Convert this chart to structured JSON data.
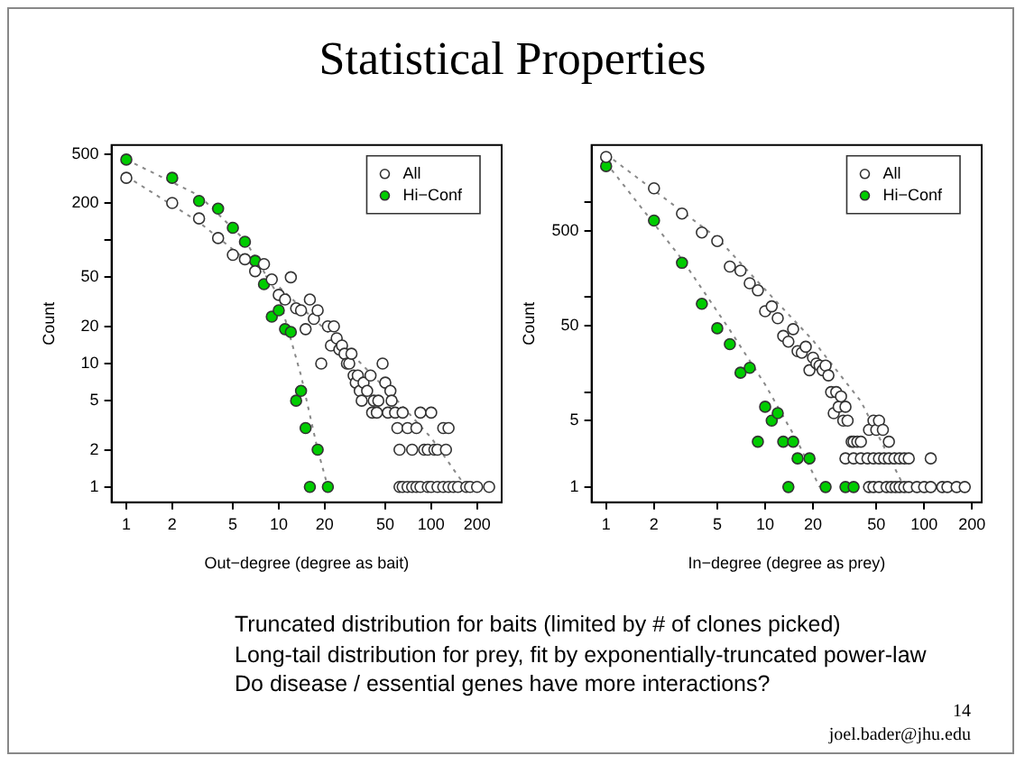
{
  "chart_data": [
    {
      "type": "scatter",
      "xlabel": "Out−degree (degree as bait)",
      "ylabel": "Count",
      "log": "xy",
      "grid": false,
      "legend": "top right",
      "marker": "circle",
      "xlim": [
        0.8,
        290
      ],
      "ylim": [
        0.75,
        590
      ],
      "xticks": [
        1,
        2,
        5,
        10,
        20,
        50,
        100,
        200
      ],
      "yticks": [
        1,
        2,
        5,
        10,
        20,
        50,
        {
          "value": 100,
          "label": null
        },
        200,
        500
      ],
      "series": [
        {
          "name": "All",
          "color": "#ffffff",
          "x": [
            1,
            2,
            3,
            4,
            5,
            6,
            7,
            8,
            9,
            10,
            11,
            12,
            13,
            14,
            15,
            16,
            17,
            18,
            19,
            21,
            22,
            23,
            24,
            25,
            26,
            27,
            28,
            29,
            30,
            31,
            32,
            33,
            34,
            35,
            36,
            38,
            40,
            41,
            42,
            44,
            45,
            48,
            50,
            52,
            54,
            55,
            58,
            60,
            62,
            65,
            70,
            75,
            80,
            85,
            90,
            95,
            100,
            105,
            110,
            120,
            125,
            130,
            62,
            65,
            70,
            75,
            80,
            85,
            95,
            100,
            110,
            120,
            130,
            140,
            150,
            170,
            180,
            200,
            240
          ],
          "values": [
            320,
            200,
            150,
            104,
            76,
            70,
            56,
            64,
            48,
            36,
            33,
            50,
            28,
            27,
            19,
            33,
            23,
            27,
            10,
            20,
            14,
            20,
            16,
            13,
            14,
            12,
            10,
            10,
            12,
            8,
            7,
            8,
            6,
            5,
            7,
            6,
            8,
            4,
            5,
            4,
            5,
            10,
            7,
            4,
            6,
            5,
            4,
            3,
            2,
            4,
            3,
            2,
            3,
            4,
            2,
            2,
            4,
            2,
            2,
            3,
            2,
            3,
            1,
            1,
            1,
            1,
            1,
            1,
            1,
            1,
            1,
            1,
            1,
            1,
            1,
            1,
            1,
            1,
            1
          ]
        },
        {
          "name": "Hi−Conf",
          "color": "#00cc00",
          "x": [
            1,
            2,
            3,
            4,
            5,
            6,
            7,
            8,
            9,
            10,
            11,
            12,
            13,
            14,
            15,
            16,
            18,
            21
          ],
          "values": [
            450,
            320,
            208,
            180,
            126,
            97,
            68,
            44,
            24,
            27,
            19,
            18,
            5,
            6,
            3,
            1,
            2,
            1
          ]
        },
        {
          "type": "line",
          "color": "#888888",
          "marker": "none",
          "line_style": "dotted",
          "x": [
            1,
            3,
            10,
            30,
            60,
            100,
            160
          ],
          "values": [
            330,
            140,
            42,
            12,
            5,
            2.5,
            1.1
          ]
        },
        {
          "type": "line",
          "color": "#888888",
          "marker": "none",
          "line_style": "dotted",
          "x": [
            1,
            3,
            6,
            10,
            14,
            18,
            21
          ],
          "values": [
            450,
            230,
            100,
            35,
            8,
            2,
            1
          ]
        }
      ]
    },
    {
      "type": "scatter",
      "xlabel": "In−degree (degree as prey)",
      "ylabel": "Count",
      "log": "xy",
      "grid": false,
      "legend": "top right",
      "marker": "circle",
      "xlim": [
        0.81,
        230
      ],
      "ylim": [
        0.69,
        4000
      ],
      "xticks": [
        1,
        2,
        5,
        10,
        20,
        50,
        100,
        200
      ],
      "yticks": [
        1,
        5,
        {
          "value": 10,
          "label": null
        },
        50,
        {
          "value": 100,
          "label": null
        },
        500,
        {
          "value": 1000,
          "label": null
        }
      ],
      "series": [
        {
          "name": "All",
          "color": "#ffffff",
          "x": [
            1,
            2,
            3,
            4,
            5,
            6,
            7,
            8,
            9,
            10,
            11,
            12,
            13,
            14,
            15,
            16,
            17,
            18,
            19,
            20,
            21,
            22,
            23,
            24,
            25,
            26,
            27,
            28,
            29,
            30,
            31,
            32,
            33,
            35,
            36,
            38,
            40,
            45,
            48,
            50,
            52,
            55,
            60,
            32,
            36,
            40,
            44,
            48,
            52,
            56,
            60,
            65,
            70,
            75,
            80,
            110,
            45,
            48,
            52,
            58,
            62,
            66,
            70,
            75,
            80,
            90,
            100,
            110,
            130,
            140,
            160,
            180
          ],
          "values": [
            3000,
            1400,
            760,
            480,
            390,
            210,
            190,
            140,
            118,
            71,
            80,
            60,
            39,
            34,
            46,
            27,
            26,
            30,
            17,
            23,
            20,
            19,
            17,
            19,
            15,
            10,
            6,
            10,
            7,
            9,
            5,
            7,
            5,
            3,
            3,
            3,
            3,
            4,
            5,
            4,
            5,
            4,
            3,
            2,
            2,
            2,
            2,
            2,
            2,
            2,
            2,
            2,
            2,
            2,
            2,
            2,
            1,
            1,
            1,
            1,
            1,
            1,
            1,
            1,
            1,
            1,
            1,
            1,
            1,
            1,
            1,
            1
          ]
        },
        {
          "name": "Hi−Conf",
          "color": "#00cc00",
          "x": [
            1,
            2,
            3,
            4,
            5,
            6,
            7,
            8,
            9,
            10,
            11,
            12,
            13,
            14,
            15,
            16,
            19,
            22,
            23,
            24,
            32,
            36
          ],
          "values": [
            2400,
            640,
            230,
            85,
            47,
            32,
            16,
            18,
            3,
            7,
            5,
            6,
            3,
            1,
            3,
            2,
            2,
            null,
            null,
            1,
            1,
            1
          ]
        },
        {
          "type": "line",
          "color": "#888888",
          "marker": "none",
          "line_style": "dotted",
          "x": [
            1,
            5,
            10,
            20,
            40,
            75
          ],
          "values": [
            3200,
            420,
            120,
            35,
            8,
            1
          ]
        },
        {
          "type": "line",
          "color": "#888888",
          "marker": "none",
          "line_style": "dotted",
          "x": [
            1,
            3,
            6,
            10,
            16,
            22
          ],
          "values": [
            2600,
            250,
            45,
            12,
            3,
            1
          ]
        }
      ]
    },
    {
      "type": "other",
      "title": "Statistical Properties",
      "annotations": [
        "Truncated distribution for baits (limited by # of clones picked)",
        "Long-tail distribution for prey, fit by exponentially-truncated power-law",
        "Do disease / essential genes have more interactions?",
        "14",
        "joel.bader@jhu.edu"
      ]
    }
  ]
}
